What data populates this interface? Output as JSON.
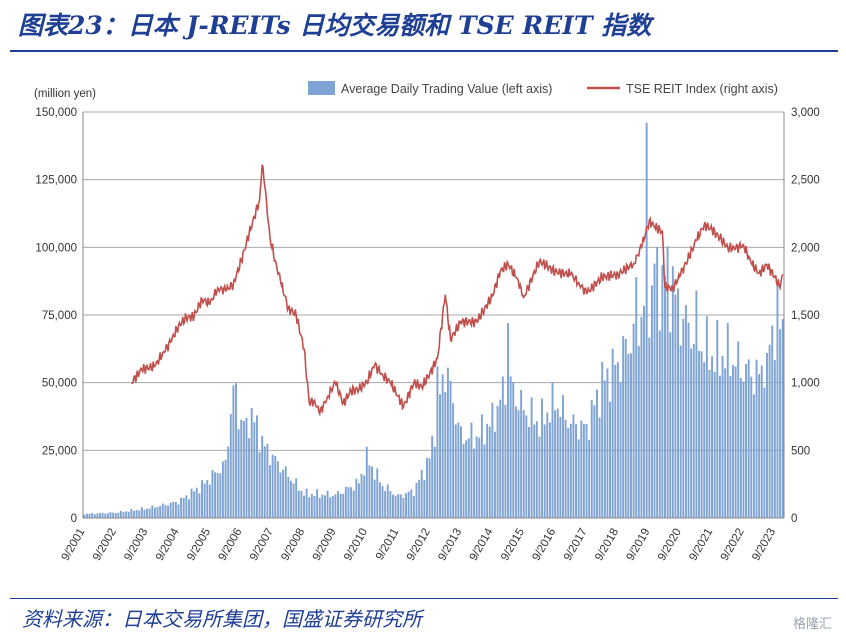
{
  "header": {
    "title": "图表23：日本 J-REITs 日均交易额和 TSE REIT 指数"
  },
  "footer": {
    "source": "资料来源：日本交易所集团，国盛证券研究所",
    "watermark": "格隆汇"
  },
  "colors": {
    "bar": "#7ea3d4",
    "line": "#c0504d",
    "grid": "#aaaaaa",
    "title": "#1f3f95"
  },
  "chart_data": {
    "type": "bar",
    "ylabel": "(million yen)",
    "ylim_left": [
      0,
      150000
    ],
    "ylim_right": [
      0,
      3000
    ],
    "yticks_left": [
      "0",
      "25,000",
      "50,000",
      "75,000",
      "100,000",
      "125,000",
      "150,000"
    ],
    "yticks_right": [
      "0",
      "500",
      "1,000",
      "1,500",
      "2,000",
      "2,500",
      "3,000"
    ],
    "xticks": [
      "9/2001",
      "9/2002",
      "9/2003",
      "9/2004",
      "9/2005",
      "9/2006",
      "9/2007",
      "9/2008",
      "9/2009",
      "9/2010",
      "9/2011",
      "9/2012",
      "9/2013",
      "9/2014",
      "9/2015",
      "9/2016",
      "9/2017",
      "9/2018",
      "9/2019",
      "9/2020",
      "9/2021",
      "9/2022",
      "9/2023"
    ],
    "legend": {
      "bar": "Average Daily Trading Value (left axis)",
      "line": "TSE REIT Index (right axis)"
    },
    "start": "2001-09",
    "bar_series": {
      "name": "Average Daily Trading Value (left axis)",
      "anchors": [
        [
          "2001-09",
          1500
        ],
        [
          "2002-09",
          2000
        ],
        [
          "2003-09",
          3500
        ],
        [
          "2004-09",
          6000
        ],
        [
          "2005-06",
          12000
        ],
        [
          "2006-03",
          20000
        ],
        [
          "2006-06",
          49000
        ],
        [
          "2006-09",
          35000
        ],
        [
          "2007-01",
          38000
        ],
        [
          "2007-06",
          26000
        ],
        [
          "2008-01",
          18000
        ],
        [
          "2008-09",
          9000
        ],
        [
          "2009-09",
          8500
        ],
        [
          "2010-06",
          13000
        ],
        [
          "2010-09",
          22000
        ],
        [
          "2011-03",
          12000
        ],
        [
          "2011-09",
          8000
        ],
        [
          "2012-03",
          10000
        ],
        [
          "2012-09",
          22000
        ],
        [
          "2013-03",
          56000
        ],
        [
          "2013-09",
          30000
        ],
        [
          "2014-03",
          30000
        ],
        [
          "2014-09",
          36000
        ],
        [
          "2015-03",
          51000
        ],
        [
          "2015-06",
          45000
        ],
        [
          "2015-09",
          40000
        ],
        [
          "2016-03",
          35000
        ],
        [
          "2016-09",
          43000
        ],
        [
          "2017-03",
          35000
        ],
        [
          "2017-09",
          33000
        ],
        [
          "2018-03",
          50000
        ],
        [
          "2018-09",
          57000
        ],
        [
          "2019-03",
          68000
        ],
        [
          "2019-08",
          80000
        ],
        [
          "2020-03",
          90000
        ],
        [
          "2020-09",
          75000
        ],
        [
          "2021-03",
          66000
        ],
        [
          "2021-09",
          60000
        ],
        [
          "2022-03",
          60000
        ],
        [
          "2022-09",
          55000
        ],
        [
          "2023-03",
          52000
        ],
        [
          "2023-09",
          72000
        ]
      ],
      "spikes": [
        [
          "2006-06",
          49000
        ],
        [
          "2006-11",
          37000
        ],
        [
          "2012-12",
          56000
        ],
        [
          "2015-03",
          72000
        ],
        [
          "2019-04",
          89000
        ],
        [
          "2019-08",
          146000
        ],
        [
          "2019-11",
          94000
        ],
        [
          "2020-06",
          93000
        ],
        [
          "2021-03",
          84000
        ],
        [
          "2023-06",
          61000
        ]
      ]
    },
    "line_series": {
      "name": "TSE REIT Index (right axis)",
      "points": [
        [
          "2003-03",
          1000
        ],
        [
          "2003-07",
          1100
        ],
        [
          "2003-12",
          1120
        ],
        [
          "2004-03",
          1220
        ],
        [
          "2004-06",
          1300
        ],
        [
          "2004-09",
          1420
        ],
        [
          "2004-12",
          1480
        ],
        [
          "2005-03",
          1490
        ],
        [
          "2005-06",
          1620
        ],
        [
          "2005-09",
          1580
        ],
        [
          "2005-12",
          1700
        ],
        [
          "2006-03",
          1680
        ],
        [
          "2006-06",
          1730
        ],
        [
          "2006-09",
          1900
        ],
        [
          "2006-12",
          2100
        ],
        [
          "2007-04",
          2350
        ],
        [
          "2007-05",
          2610
        ],
        [
          "2007-06",
          2450
        ],
        [
          "2007-08",
          2070
        ],
        [
          "2007-10",
          1900
        ],
        [
          "2007-12",
          1750
        ],
        [
          "2008-03",
          1550
        ],
        [
          "2008-06",
          1500
        ],
        [
          "2008-09",
          1250
        ],
        [
          "2008-11",
          850
        ],
        [
          "2009-01",
          870
        ],
        [
          "2009-03",
          770
        ],
        [
          "2009-06",
          900
        ],
        [
          "2009-09",
          1000
        ],
        [
          "2009-12",
          850
        ],
        [
          "2010-03",
          940
        ],
        [
          "2010-06",
          950
        ],
        [
          "2010-09",
          1010
        ],
        [
          "2010-12",
          1130
        ],
        [
          "2011-03",
          1060
        ],
        [
          "2011-06",
          1000
        ],
        [
          "2011-09",
          900
        ],
        [
          "2011-11",
          820
        ],
        [
          "2012-03",
          1000
        ],
        [
          "2012-06",
          970
        ],
        [
          "2012-09",
          1060
        ],
        [
          "2012-12",
          1180
        ],
        [
          "2013-03",
          1650
        ],
        [
          "2013-05",
          1320
        ],
        [
          "2013-09",
          1450
        ],
        [
          "2014-03",
          1450
        ],
        [
          "2014-09",
          1640
        ],
        [
          "2014-12",
          1820
        ],
        [
          "2015-03",
          1880
        ],
        [
          "2015-06",
          1780
        ],
        [
          "2015-08",
          1700
        ],
        [
          "2015-09",
          1630
        ],
        [
          "2016-03",
          1900
        ],
        [
          "2016-06",
          1860
        ],
        [
          "2016-09",
          1820
        ],
        [
          "2017-03",
          1800
        ],
        [
          "2017-06",
          1740
        ],
        [
          "2017-09",
          1660
        ],
        [
          "2018-03",
          1780
        ],
        [
          "2018-09",
          1800
        ],
        [
          "2019-03",
          1880
        ],
        [
          "2019-06",
          2000
        ],
        [
          "2019-09",
          2200
        ],
        [
          "2019-11",
          2150
        ],
        [
          "2020-02",
          2120
        ],
        [
          "2020-03",
          1700
        ],
        [
          "2020-06",
          1700
        ],
        [
          "2020-09",
          1800
        ],
        [
          "2021-03",
          2050
        ],
        [
          "2021-06",
          2170
        ],
        [
          "2021-09",
          2130
        ],
        [
          "2021-12",
          2070
        ],
        [
          "2022-03",
          2000
        ],
        [
          "2022-06",
          1990
        ],
        [
          "2022-09",
          2020
        ],
        [
          "2022-12",
          1880
        ],
        [
          "2023-03",
          1810
        ],
        [
          "2023-06",
          1870
        ],
        [
          "2023-09",
          1780
        ],
        [
          "2023-11",
          1700
        ],
        [
          "2023-12",
          1800
        ]
      ]
    }
  }
}
